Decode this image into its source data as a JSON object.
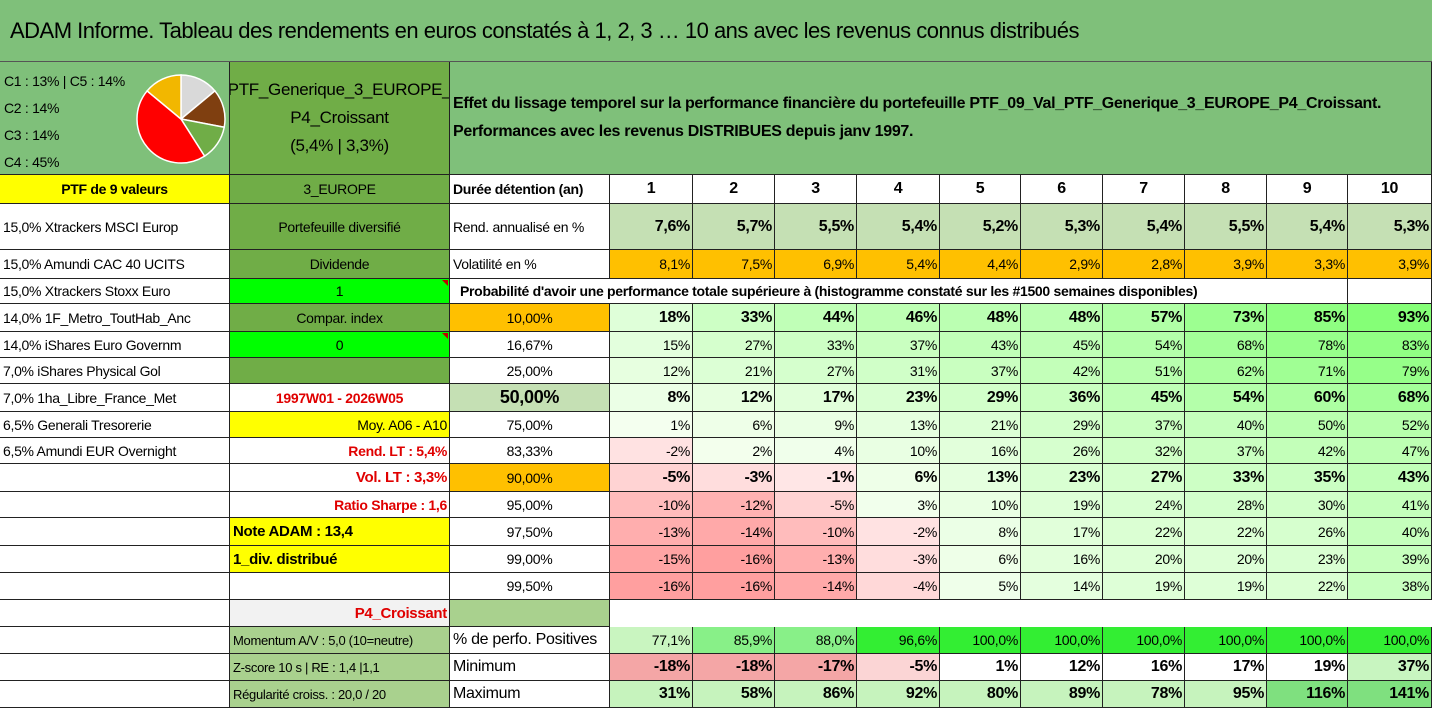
{
  "title": "ADAM Informe. Tableau des rendements en euros constatés à 1, 2, 3 … 10 ans avec les revenus connus distribués",
  "pie_legend": [
    "C1 : 13% | C5 : 14%",
    "C2 : 14%",
    "C3 : 14%",
    "C4 : 45%"
  ],
  "portfolio_name_lines": [
    "PTF_Generique_3_EUROPE_",
    "P4_Croissant",
    "(5,4% | 3,3%)"
  ],
  "description_lines": [
    "Effet du lissage temporel sur la performance financière du portefeuille PTF_09_Val_PTF_Generique_3_EUROPE_P4_Croissant.",
    "Performances avec les revenus DISTRIBUES depuis janv 1997."
  ],
  "colors": {
    "title_bg": "#7fc07a",
    "mid_green": "#70ad47",
    "light_green": "#c5e0b4",
    "orange": "#ffc000",
    "yellow": "#ffff00",
    "bright_green": "#00ff00",
    "red_text": "#e00000"
  },
  "left_col": [
    "PTF de 9 valeurs",
    "15,0% Xtrackers MSCI Europ",
    "15,0% Amundi CAC 40 UCITS",
    "15,0% Xtrackers Stoxx Euro",
    "14,0% 1F_Metro_ToutHab_Anc",
    "14,0% iShares Euro Governm",
    "7,0% iShares Physical Gol",
    "7,0% 1ha_Libre_France_Met",
    "6,5% Generali Tresorerie",
    "6,5% Amundi EUR Overnight"
  ],
  "mid_col": [
    "3_EUROPE",
    "Portefeuille diversifié",
    "Dividende",
    "1",
    "Compar. index",
    "0",
    "",
    "1997W01 - 2026W05",
    "Moy. A06 - A10",
    "Rend. LT : 5,4%",
    "Vol. LT : 3,3%",
    "Ratio Sharpe : 1,6"
  ],
  "note_adam": "Note ADAM : 13,4",
  "div_label": "1_div. distribué",
  "p4_label": "P4_Croissant",
  "bottom_labels": [
    "Momentum A/V : 5,0 (10=neutre)",
    "Z-score 10 s | RE : 1,4 |1,1",
    "Régularité croiss. : 20,0 / 20"
  ],
  "table": {
    "header_label": "Durée détention (an)",
    "years": [
      "1",
      "2",
      "3",
      "4",
      "5",
      "6",
      "7",
      "8",
      "9",
      "10"
    ],
    "rend_label": "Rend. annualisé en %",
    "rend": [
      "7,6%",
      "5,7%",
      "5,5%",
      "5,4%",
      "5,2%",
      "5,3%",
      "5,4%",
      "5,5%",
      "5,4%",
      "5,3%"
    ],
    "vol_label": "Volatilité en %",
    "vol": [
      "8,1%",
      "7,5%",
      "6,9%",
      "5,4%",
      "4,4%",
      "2,9%",
      "2,8%",
      "3,9%",
      "3,3%",
      "3,9%"
    ],
    "prob_label": "Probabilité d'avoir une performance totale supérieure à (histogramme constaté sur les #1500 semaines disponibles)",
    "prob_rows": [
      {
        "p": "10,00%",
        "v": [
          "18%",
          "33%",
          "44%",
          "46%",
          "48%",
          "48%",
          "57%",
          "73%",
          "85%",
          "93%"
        ]
      },
      {
        "p": "16,67%",
        "v": [
          "15%",
          "27%",
          "33%",
          "37%",
          "43%",
          "45%",
          "54%",
          "68%",
          "78%",
          "83%"
        ]
      },
      {
        "p": "25,00%",
        "v": [
          "12%",
          "21%",
          "27%",
          "31%",
          "37%",
          "42%",
          "51%",
          "62%",
          "71%",
          "79%"
        ]
      },
      {
        "p": "50,00%",
        "v": [
          "8%",
          "12%",
          "17%",
          "23%",
          "29%",
          "36%",
          "45%",
          "54%",
          "60%",
          "68%"
        ]
      },
      {
        "p": "75,00%",
        "v": [
          "1%",
          "6%",
          "9%",
          "13%",
          "21%",
          "29%",
          "37%",
          "40%",
          "50%",
          "52%"
        ]
      },
      {
        "p": "83,33%",
        "v": [
          "-2%",
          "2%",
          "4%",
          "10%",
          "16%",
          "26%",
          "32%",
          "37%",
          "42%",
          "47%"
        ]
      },
      {
        "p": "90,00%",
        "v": [
          "-5%",
          "-3%",
          "-1%",
          "6%",
          "13%",
          "23%",
          "27%",
          "33%",
          "35%",
          "43%"
        ]
      },
      {
        "p": "95,00%",
        "v": [
          "-10%",
          "-12%",
          "-5%",
          "3%",
          "10%",
          "19%",
          "24%",
          "28%",
          "30%",
          "41%"
        ]
      },
      {
        "p": "97,50%",
        "v": [
          "-13%",
          "-14%",
          "-10%",
          "-2%",
          "8%",
          "17%",
          "22%",
          "22%",
          "26%",
          "40%"
        ]
      },
      {
        "p": "99,00%",
        "v": [
          "-15%",
          "-16%",
          "-13%",
          "-3%",
          "6%",
          "16%",
          "20%",
          "20%",
          "23%",
          "39%"
        ]
      },
      {
        "p": "99,50%",
        "v": [
          "-16%",
          "-16%",
          "-14%",
          "-4%",
          "5%",
          "14%",
          "19%",
          "19%",
          "22%",
          "38%"
        ]
      }
    ],
    "pos_label": "% de perfo. Positives",
    "pos": [
      "77,1%",
      "85,9%",
      "88,0%",
      "96,6%",
      "100,0%",
      "100,0%",
      "100,0%",
      "100,0%",
      "100,0%",
      "100,0%"
    ],
    "min_label": "Minimum",
    "min": [
      "-18%",
      "-18%",
      "-17%",
      "-5%",
      "1%",
      "12%",
      "16%",
      "17%",
      "19%",
      "37%"
    ],
    "max_label": "Maximum",
    "max": [
      "31%",
      "58%",
      "86%",
      "92%",
      "80%",
      "89%",
      "78%",
      "95%",
      "116%",
      "141%"
    ]
  },
  "pie": [
    {
      "name": "C1",
      "pct": 13,
      "color": "#70ad47"
    },
    {
      "name": "C2",
      "pct": 14,
      "color": "#f2b700"
    },
    {
      "name": "C3",
      "pct": 14,
      "color": "#d9d9d9"
    },
    {
      "name": "C4",
      "pct": 45,
      "color": "#ff0000"
    },
    {
      "name": "C5",
      "pct": 14,
      "color": "#7f3f10"
    }
  ]
}
